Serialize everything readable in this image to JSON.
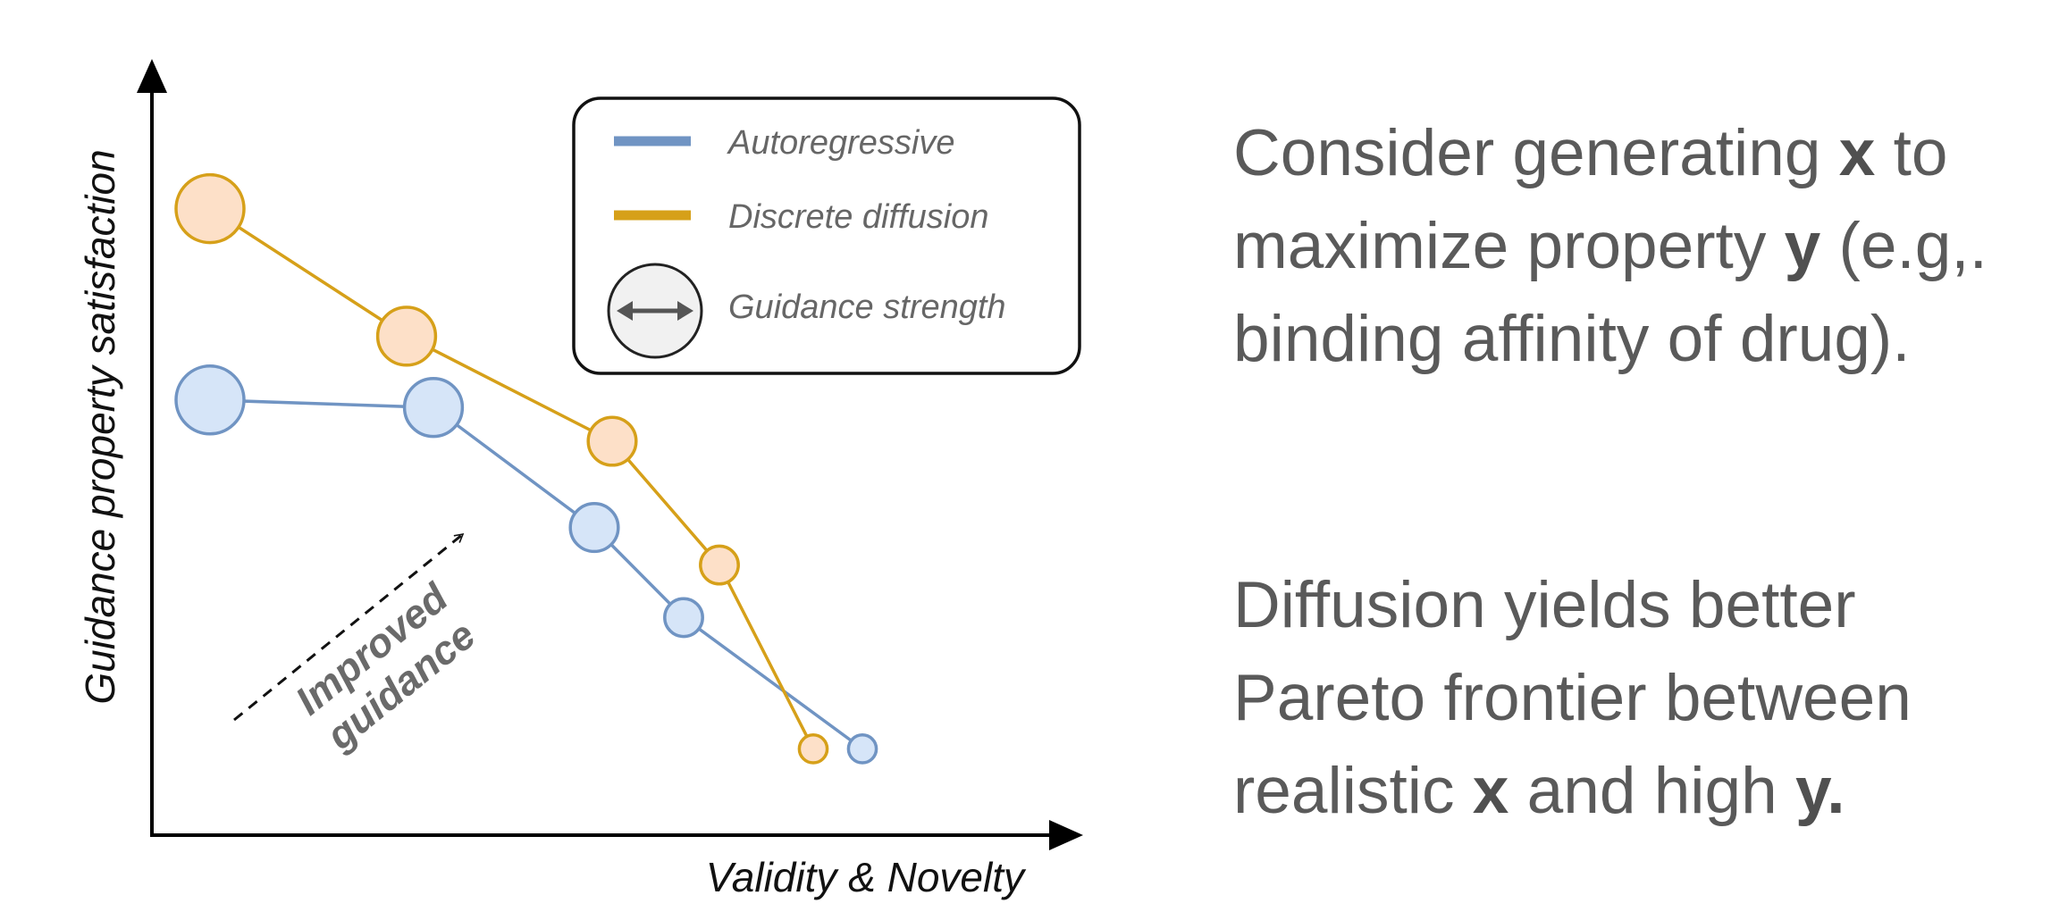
{
  "chart_data": {
    "type": "scatter",
    "xlabel": "Validity & Novelty",
    "ylabel": "Guidance property satisfaction",
    "xlim": [
      0,
      10
    ],
    "ylim": [
      0,
      10
    ],
    "series": [
      {
        "name": "Autoregressive",
        "color": "#7094c3",
        "fill": "#d6e5f8",
        "points": [
          {
            "x": 0.65,
            "y": 5.8,
            "guidance_strength": 5
          },
          {
            "x": 3.15,
            "y": 5.7,
            "guidance_strength": 4
          },
          {
            "x": 4.95,
            "y": 4.1,
            "guidance_strength": 3
          },
          {
            "x": 5.95,
            "y": 2.9,
            "guidance_strength": 2
          },
          {
            "x": 7.95,
            "y": 1.15,
            "guidance_strength": 1
          }
        ]
      },
      {
        "name": "Discrete diffusion",
        "color": "#d6a019",
        "fill": "#fde0c8",
        "points": [
          {
            "x": 0.65,
            "y": 8.35,
            "guidance_strength": 5
          },
          {
            "x": 2.85,
            "y": 6.65,
            "guidance_strength": 4
          },
          {
            "x": 5.15,
            "y": 5.25,
            "guidance_strength": 3
          },
          {
            "x": 6.35,
            "y": 3.6,
            "guidance_strength": 2
          },
          {
            "x": 7.4,
            "y": 1.15,
            "guidance_strength": 1
          }
        ]
      }
    ],
    "legend": {
      "position": "top-right",
      "entries": [
        "Autoregressive",
        "Discrete diffusion",
        "Guidance strength"
      ]
    },
    "annotation": {
      "lines": [
        "Improved",
        "guidance"
      ]
    },
    "grid": false
  },
  "side_text": {
    "para1": {
      "l1a": "Consider generating ",
      "l1b": "x",
      "l1c": " to",
      "l2a": "maximize property ",
      "l2b": "y",
      "l2c": " (e.g,.",
      "l3": "binding affinity of drug)."
    },
    "para2": {
      "l1": "Diffusion yields better",
      "l2": "Pareto frontier between",
      "l3a": "realistic ",
      "l3b": "x",
      "l3c": " and high ",
      "l3d": "y."
    }
  }
}
